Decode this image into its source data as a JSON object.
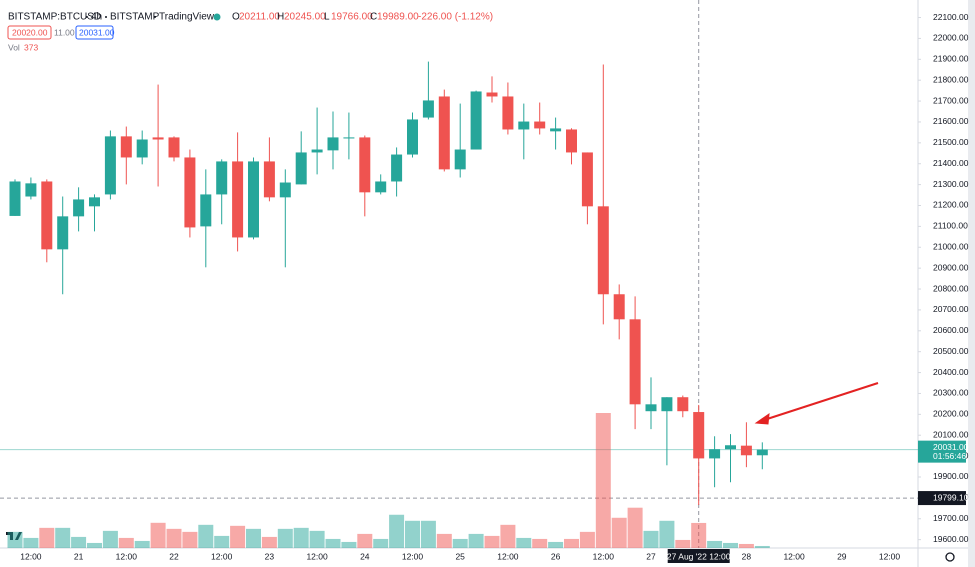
{
  "chart_data": {
    "type": "candlestick",
    "symbol": "BITSTAMP:BTCUSD",
    "interval": "4h",
    "exchange": "BITSTAMP",
    "source": "TradingView",
    "legend_ohlc": [
      {
        "key": "O",
        "text": "20211.00"
      },
      {
        "key": "H",
        "text": "20245.00"
      },
      {
        "key": "L",
        "text": "19766.00"
      },
      {
        "key": "C",
        "text": "19989.00"
      }
    ],
    "change": "-226.00 (-1.12%)",
    "quote": {
      "bid": "20020.00",
      "spread": "11.00",
      "ask": "20031.00"
    },
    "volume_legend": {
      "label": "Vol",
      "value": "373"
    },
    "up_color": "#26a69a",
    "down_color": "#ef5350",
    "categories": [
      null,
      "12:00",
      null,
      null,
      "21",
      null,
      null,
      "12:00",
      null,
      null,
      "22",
      null,
      null,
      "12:00",
      null,
      null,
      "23",
      null,
      null,
      "12:00",
      null,
      null,
      "24",
      null,
      null,
      "12:00",
      null,
      null,
      "25",
      null,
      null,
      "12:00",
      null,
      null,
      "26",
      null,
      null,
      "12:00",
      null,
      null,
      "27",
      null,
      null,
      "27 Aug '22   12:00",
      null,
      null,
      "28",
      null,
      null,
      "12:00",
      null,
      null,
      "29",
      null,
      null,
      "12:00"
    ],
    "open": [
      21150,
      21243,
      21315,
      20990,
      21148,
      21196,
      21253,
      21531,
      21430,
      21526,
      21526,
      21430,
      21100,
      21253,
      21411,
      21047,
      21411,
      21239,
      21301,
      21454,
      21464,
      21521,
      21526,
      21263,
      21315,
      21444,
      21621,
      21722,
      21373,
      21468,
      21741,
      21722,
      21564,
      21602,
      21555,
      21564,
      21454,
      21196,
      20775,
      20655,
      20215,
      20215,
      20282,
      20211,
      19989,
      20033,
      20050,
      20004,
      null,
      null,
      null,
      null,
      null,
      null,
      null,
      null
    ],
    "high": [
      21325,
      21334,
      21325,
      21243,
      21287,
      21253,
      21559,
      21578,
      21559,
      21779,
      21531,
      21468,
      21373,
      21421,
      21550,
      21430,
      21526,
      21373,
      21555,
      21669,
      21650,
      21645,
      21535,
      21349,
      21478,
      21645,
      21889,
      21755,
      21688,
      21750,
      21818,
      21789,
      21688,
      21693,
      21621,
      21570,
      21454,
      21875,
      20822,
      20765,
      20377,
      20282,
      20290,
      20245,
      20095,
      20105,
      20162,
      20066,
      null,
      null,
      null,
      null,
      null,
      null,
      null,
      null
    ],
    "low": [
      21150,
      21229,
      20928,
      20775,
      21076,
      21076,
      21229,
      21301,
      21397,
      21291,
      21411,
      21047,
      20904,
      21110,
      20980,
      21038,
      21220,
      20904,
      21301,
      21349,
      21373,
      21421,
      21148,
      21253,
      21243,
      21430,
      21612,
      21363,
      21334,
      21468,
      21693,
      21540,
      21421,
      21540,
      21468,
      21397,
      21110,
      20631,
      20559,
      20129,
      20129,
      19956,
      20186,
      19766,
      19851,
      19875,
      19947,
      19937,
      null,
      null,
      null,
      null,
      null,
      null,
      null,
      null
    ],
    "close": [
      21315,
      21306,
      20990,
      21148,
      21229,
      21239,
      21531,
      21430,
      21516,
      21516,
      21430,
      21095,
      21253,
      21411,
      21047,
      21411,
      21239,
      21310,
      21454,
      21468,
      21526,
      21526,
      21263,
      21315,
      21444,
      21612,
      21703,
      21373,
      21468,
      21746,
      21722,
      21564,
      21602,
      21569,
      21569,
      21454,
      21196,
      20775,
      20655,
      20248,
      20248,
      20282,
      20215,
      19989,
      20033,
      20052,
      20004,
      20031,
      null,
      null,
      null,
      null,
      null,
      null,
      null,
      null
    ],
    "volume": [
      240,
      150,
      300,
      300,
      165,
      75,
      255,
      150,
      105,
      375,
      285,
      240,
      345,
      180,
      330,
      285,
      165,
      285,
      300,
      255,
      135,
      90,
      210,
      135,
      495,
      405,
      405,
      210,
      135,
      210,
      180,
      345,
      150,
      135,
      90,
      135,
      240,
      2010,
      450,
      600,
      255,
      405,
      120,
      373,
      105,
      75,
      60,
      30,
      null,
      null,
      null,
      null,
      null,
      null,
      null,
      null
    ],
    "ylim": [
      19560,
      22160
    ],
    "yticks": [
      {
        "value": 19600,
        "label": "19600.00"
      },
      {
        "value": 19700,
        "label": "19700.00"
      },
      {
        "value": 19800,
        "label": "19800.00"
      },
      {
        "value": 19900,
        "label": "19900.00"
      },
      {
        "value": 20000,
        "label": "20000.00"
      },
      {
        "value": 20100,
        "label": "20100.00"
      },
      {
        "value": 20200,
        "label": "20200.00"
      },
      {
        "value": 20300,
        "label": "20300.00"
      },
      {
        "value": 20400,
        "label": "20400.00"
      },
      {
        "value": 20500,
        "label": "20500.00"
      },
      {
        "value": 20600,
        "label": "20600.00"
      },
      {
        "value": 20700,
        "label": "20700.00"
      },
      {
        "value": 20800,
        "label": "20800.00"
      },
      {
        "value": 20900,
        "label": "20900.00"
      },
      {
        "value": 21000,
        "label": "21000.00"
      },
      {
        "value": 21100,
        "label": "21100.00"
      },
      {
        "value": 21200,
        "label": "21200.00"
      },
      {
        "value": 21300,
        "label": "21300.00"
      },
      {
        "value": 21400,
        "label": "21400.00"
      },
      {
        "value": 21500,
        "label": "21500.00"
      },
      {
        "value": 21600,
        "label": "21600.00"
      },
      {
        "value": 21700,
        "label": "21700.00"
      },
      {
        "value": 21800,
        "label": "21800.00"
      },
      {
        "value": 21900,
        "label": "21900.00"
      },
      {
        "value": 22000,
        "label": "22000.00"
      },
      {
        "value": 22100,
        "label": "22100.00"
      }
    ],
    "grid": false,
    "last_price": {
      "value": 20031,
      "label": "20031.00",
      "countdown": "01:56:46"
    },
    "crosshair": {
      "x": "27 Aug '22   12:00",
      "y": 19799.1,
      "y_label": "19799.10"
    }
  }
}
